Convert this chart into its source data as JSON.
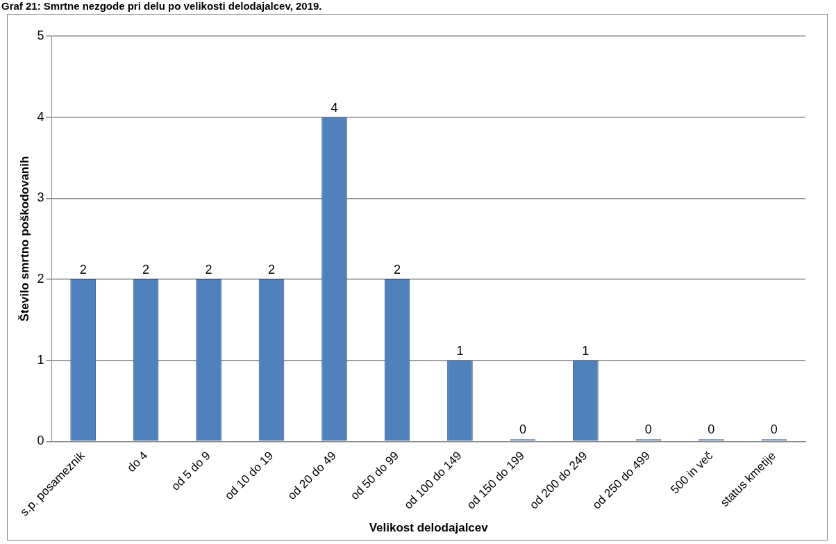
{
  "chart_data": {
    "type": "bar",
    "title": "Graf 21: Smrtne nezgode pri delu po velikosti delodajalcev, 2019.",
    "xlabel": "Velikost delodajalcev",
    "ylabel": "Število smrtno poškodovanih",
    "categories": [
      "s.p. posameznik",
      "do 4",
      "od 5 do 9",
      "od 10 do 19",
      "od 20 do 49",
      "od 50 do 99",
      "od 100 do 149",
      "od 150 do 199",
      "od 200 do 249",
      "od 250 do 499",
      "500 in več",
      "status kmetije"
    ],
    "values": [
      2,
      2,
      2,
      2,
      4,
      2,
      1,
      0,
      1,
      0,
      0,
      0
    ],
    "color": "#4f81bd",
    "ylim": [
      0,
      5
    ],
    "yticks": [
      0,
      1,
      2,
      3,
      4,
      5
    ],
    "grid": "y",
    "data_labels": true,
    "legend": false
  }
}
